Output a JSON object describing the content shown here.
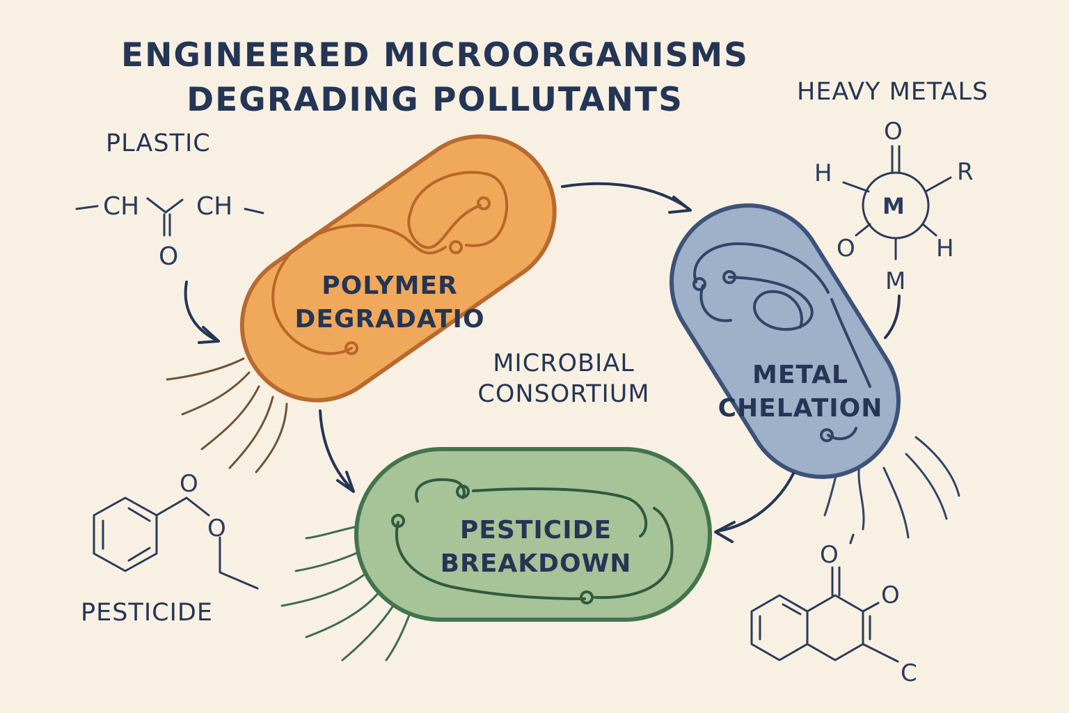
{
  "title": {
    "line1": "ENGINEERED MICROORGANISMS",
    "line2": "DEGRADING POLLUTANTS"
  },
  "pollutants": {
    "plastic": "PLASTIC",
    "heavy_metals": "HEAVY METALS",
    "pesticide": "PESTICIDE"
  },
  "center_label": {
    "line1": "MICROBIAL",
    "line2": "CONSORTIUM"
  },
  "cells": {
    "polymer": {
      "line1": "POLYMER",
      "line2": "DEGRADATIO",
      "color": "#f0a95a"
    },
    "metal": {
      "line1": "METAL",
      "line2": "CHELATION",
      "color": "#9fb0c9"
    },
    "pesticide": {
      "line1": "PESTICIDE",
      "line2": "BREAKDOWN",
      "color": "#a7c398"
    }
  },
  "plastic_structure": {
    "ch_left": "CH",
    "ch_right": "CH",
    "oxygen": "O"
  },
  "metal_complex": {
    "top_o": "O",
    "left_h": "H",
    "right_r": "R",
    "center_m": "M",
    "bottom_o": "O",
    "bottom_h": "H",
    "lower_m": "M"
  },
  "pesticide_structure": {
    "o_top": "O",
    "o_mid": "O"
  },
  "quinone_structure": {
    "o_top": "O",
    "o_right": "O",
    "c_bottom": "C"
  },
  "colors": {
    "ink": "#243555",
    "background": "#f8f1e3",
    "orange_outline": "#b96a2e",
    "blue_outline": "#3c5279",
    "green_outline": "#43744e"
  }
}
